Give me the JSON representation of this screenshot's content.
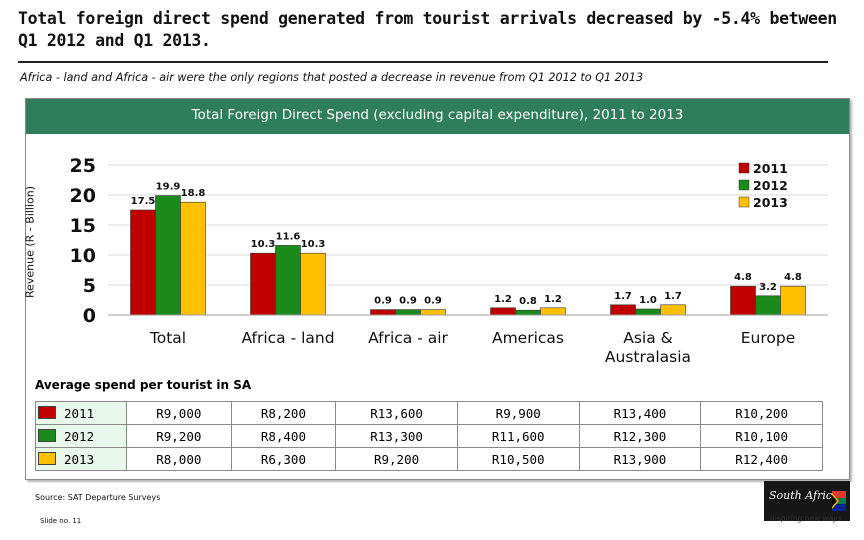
{
  "title": "Total foreign direct spend generated from tourist arrivals decreased by -5.4% between Q1 2012 and Q1 2013.",
  "subtitle": "Africa - land and Africa - air were the only regions that posted a decrease in revenue from Q1 2012 to Q1 2013",
  "chart_data": {
    "type": "bar",
    "title": "Total Foreign Direct Spend (excluding capital expenditure), 2011 to 2013",
    "ylabel": "Revenue (R - Billion)",
    "xlabel": "",
    "ylim": [
      0,
      25
    ],
    "yticks": [
      "0",
      "5",
      "10",
      "15",
      "20",
      "25"
    ],
    "categories": [
      "Total",
      "Africa - land",
      "Africa - air",
      "Americas",
      "Asia & Australasia",
      "Europe"
    ],
    "series": [
      {
        "name": "2011",
        "color": "#c00000",
        "values": [
          17.5,
          10.3,
          0.9,
          1.2,
          1.7,
          4.8
        ]
      },
      {
        "name": "2012",
        "color": "#1a8a1a",
        "values": [
          19.9,
          11.6,
          0.9,
          0.8,
          1.0,
          3.2
        ]
      },
      {
        "name": "2013",
        "color": "#ffc000",
        "values": [
          18.8,
          10.3,
          0.9,
          1.2,
          1.7,
          4.8
        ]
      }
    ],
    "data_labels": [
      [
        "17.5",
        "19.9",
        "18.8"
      ],
      [
        "10.3",
        "11.6",
        "10.3"
      ],
      [
        "0.9",
        "0.9",
        "0.9"
      ],
      [
        "1.2",
        "0.8",
        "1.2"
      ],
      [
        "1.7",
        "1.0",
        "1.7"
      ],
      [
        "4.8",
        "3.2",
        "4.8"
      ]
    ],
    "grid": true,
    "legend": "top-right"
  },
  "avg_table": {
    "label": "Average spend per tourist in SA",
    "rows": [
      {
        "year": "2011",
        "color": "#c00000",
        "values": [
          "R9,000",
          "R8,200",
          "R13,600",
          "R9,900",
          "R13,400",
          "R10,200"
        ]
      },
      {
        "year": "2012",
        "color": "#1a8a1a",
        "values": [
          "R9,200",
          "R8,400",
          "R13,300",
          "R11,600",
          "R12,300",
          "R10,100"
        ]
      },
      {
        "year": "2013",
        "color": "#ffc000",
        "values": [
          "R8,000",
          "R6,300",
          "R9,200",
          "R10,500",
          "R13,900",
          "R12,400"
        ]
      }
    ]
  },
  "source": "Source: SAT Departure Surveys",
  "slide_no": "Slide no. 11",
  "logo": {
    "text": "South Africa",
    "tagline": "inspiring new ways"
  }
}
